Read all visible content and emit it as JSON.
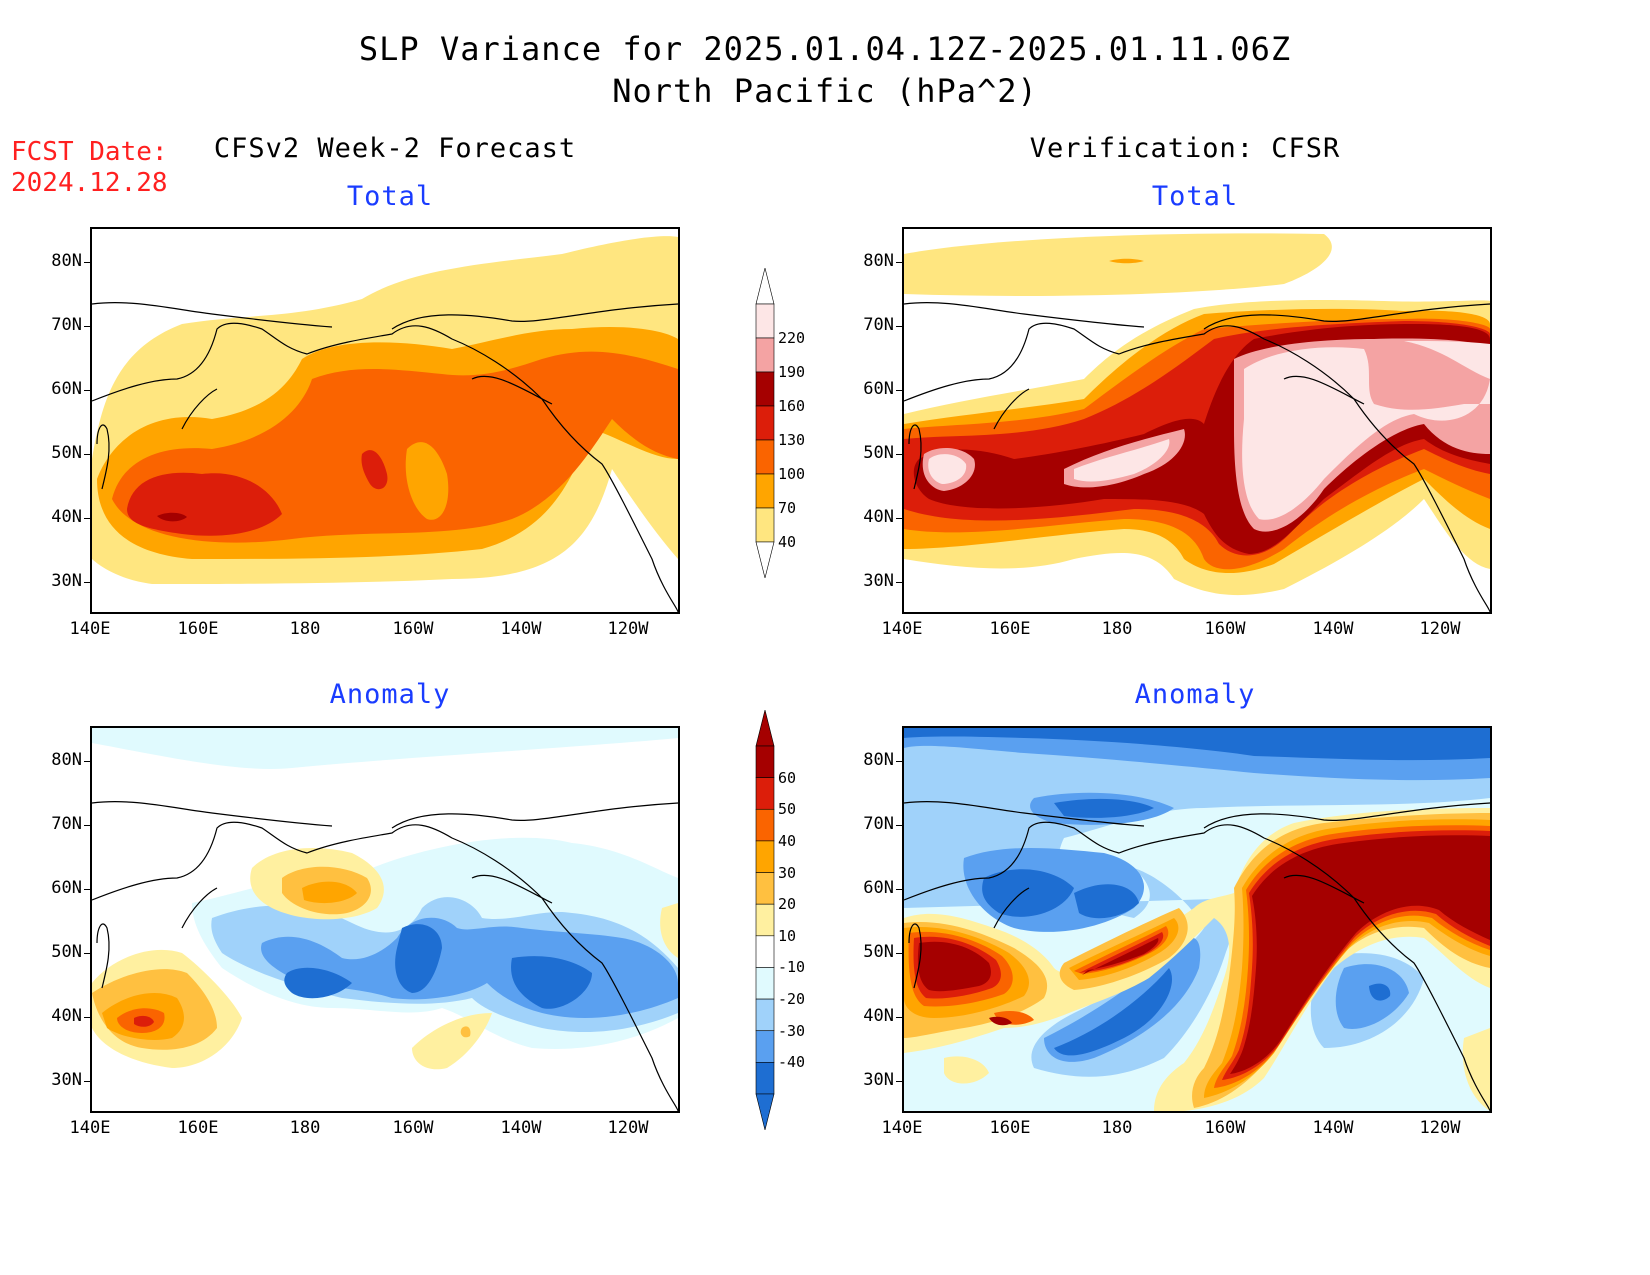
{
  "title_line1": "SLP Variance for 2025.01.04.12Z-2025.01.11.06Z",
  "title_line2": "North Pacific (hPa^2)",
  "fcst_label": "FCST Date:",
  "fcst_date": "2024.12.28",
  "left_column_title": "CFSv2 Week-2 Forecast",
  "right_column_title": "Verification: CFSR",
  "panels": {
    "forecast_total_title": "Total",
    "verification_total_title": "Total",
    "forecast_anomaly_title": "Anomaly",
    "verification_anomaly_title": "Anomaly"
  },
  "lat_labels": [
    "80N",
    "70N",
    "60N",
    "50N",
    "40N",
    "30N"
  ],
  "lon_labels": [
    "140E",
    "160E",
    "180",
    "160W",
    "140W",
    "120W"
  ],
  "total_colorbar": {
    "levels": [
      "220",
      "190",
      "160",
      "130",
      "100",
      "70",
      "40"
    ],
    "colors": [
      "#fde6e6",
      "#f4a3a3",
      "#a50000",
      "#dc1e0a",
      "#fa6400",
      "#ffa500",
      "#ffe680"
    ]
  },
  "anomaly_colorbar": {
    "levels": [
      "60",
      "50",
      "40",
      "30",
      "20",
      "10",
      "-10",
      "-20",
      "-30",
      "-40"
    ],
    "colors": [
      "#a50000",
      "#dc1e0a",
      "#fa6400",
      "#ffa500",
      "#ffc040",
      "#fff0a0",
      "#ffffff",
      "#e0fafe",
      "#a0d2fa",
      "#5aa0f0",
      "#1e6ed2"
    ]
  }
}
